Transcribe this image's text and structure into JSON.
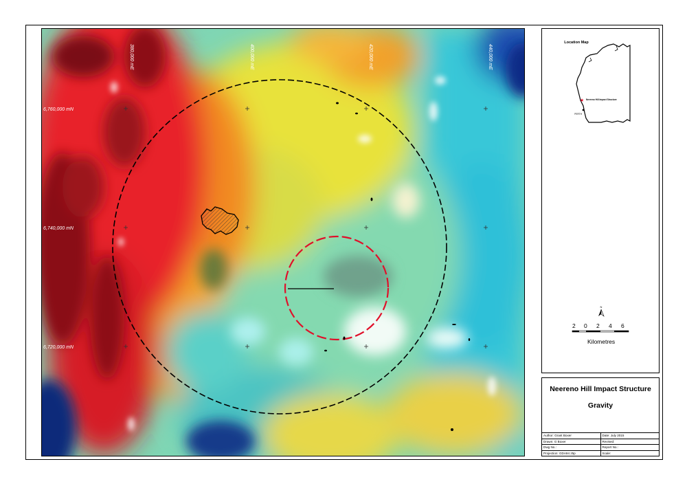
{
  "map": {
    "easting_labels": [
      "380,000 mE",
      "400,000 mE",
      "420,000 mE",
      "440,000 mE"
    ],
    "northing_labels": [
      "6,760,000 mN",
      "6,740,000 mN",
      "6,720,000 mN"
    ]
  },
  "location_map": {
    "title": "Location Map",
    "marker_label": "Neereno Hill Impact Structure",
    "city_label": "PERTH"
  },
  "scale_bar": {
    "ticks": [
      "2",
      "0",
      "2",
      "4",
      "6"
    ],
    "unit": "Kilometres"
  },
  "title_block": {
    "title": "Neereno Hill Impact Structure",
    "subtitle": "Gravity",
    "rows": [
      {
        "left": "Author: Grant Boxer",
        "right": "Date: July 2015"
      },
      {
        "left": "Drawn: G Boxer",
        "right": "Revised:"
      },
      {
        "left": "Dwg No.:",
        "right": "Report No.:"
      },
      {
        "left": "Projection: GDA94 z5p",
        "right": "Scale:"
      }
    ]
  },
  "colors": {
    "high": "#c8102e",
    "mid": "#ffd21a",
    "low": "#22c8e0",
    "lowest": "#0a2a8a",
    "outer_ring": "#000000",
    "inner_ring": "#e0102a"
  }
}
